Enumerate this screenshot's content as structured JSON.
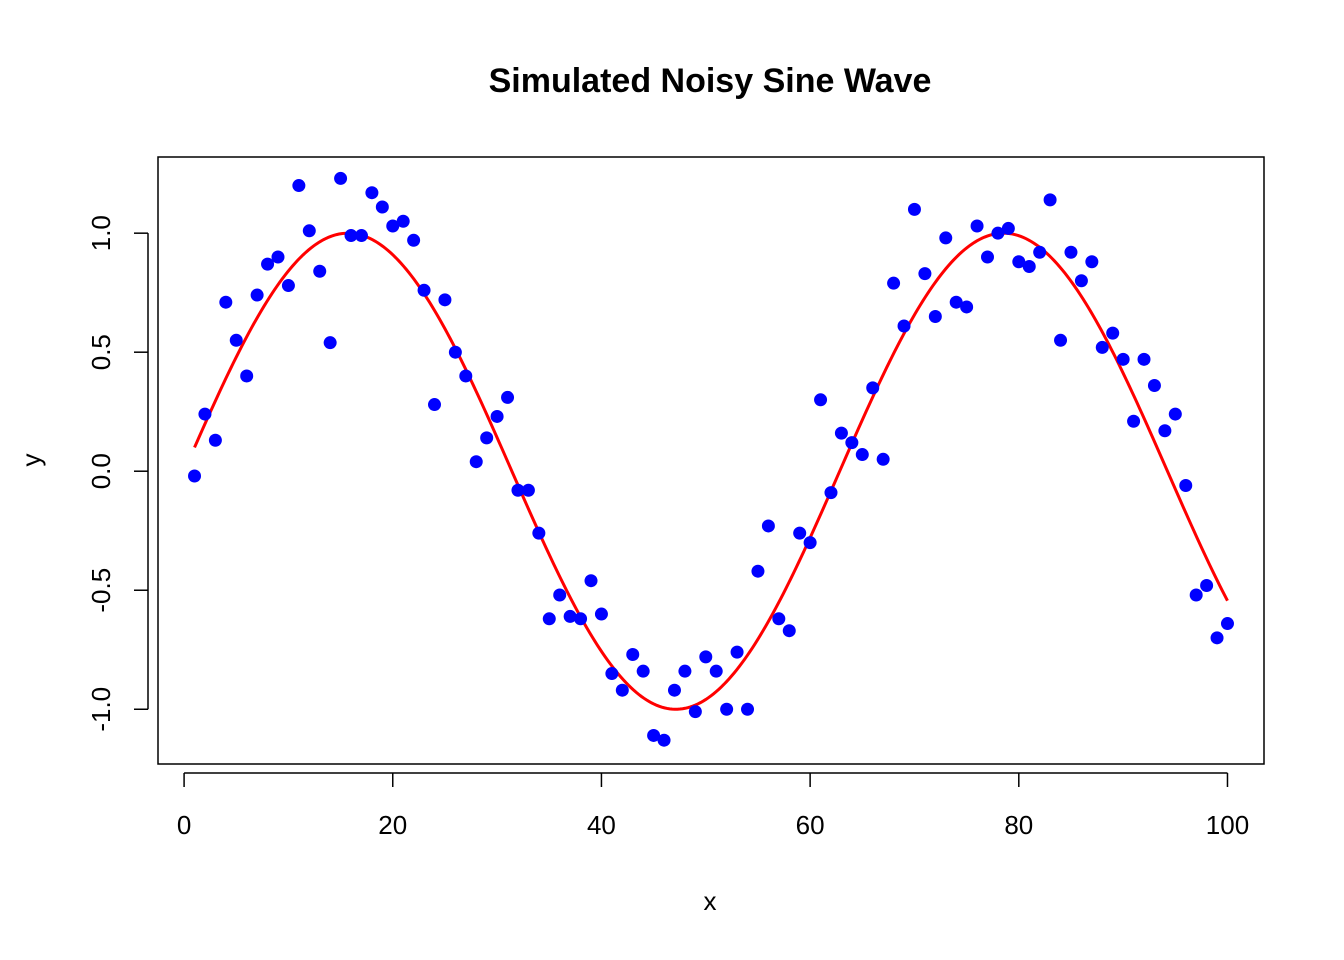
{
  "chart_data": {
    "type": "scatter",
    "title": "Simulated Noisy Sine Wave",
    "xlabel": "x",
    "ylabel": "y",
    "xlim": [
      -2.5,
      103.5
    ],
    "ylim": [
      -1.23,
      1.32
    ],
    "xticks": [
      0,
      20,
      40,
      60,
      80,
      100
    ],
    "xtick_labels": [
      "0",
      "20",
      "40",
      "60",
      "80",
      "100"
    ],
    "yticks": [
      -1.0,
      -0.5,
      0.0,
      0.5,
      1.0
    ],
    "ytick_labels": [
      "-1.0",
      "-0.5",
      "0.0",
      "0.5",
      "1.0"
    ],
    "grid": false,
    "legend": "none",
    "colors": {
      "points": "#0000ff",
      "line": "#ff0000",
      "axes": "#000000"
    },
    "series": [
      {
        "mark": "points",
        "x": [
          1,
          2,
          3,
          4,
          5,
          6,
          7,
          8,
          9,
          10,
          11,
          12,
          13,
          14,
          15,
          16,
          17,
          18,
          19,
          20,
          21,
          22,
          23,
          24,
          25,
          26,
          27,
          28,
          29,
          30,
          31,
          32,
          33,
          34,
          35,
          36,
          37,
          38,
          39,
          40,
          41,
          42,
          43,
          44,
          45,
          46,
          47,
          48,
          49,
          50,
          51,
          52,
          53,
          54,
          55,
          56,
          57,
          58,
          59,
          60,
          61,
          62,
          63,
          64,
          65,
          66,
          67,
          68,
          69,
          70,
          71,
          72,
          73,
          74,
          75,
          76,
          77,
          78,
          79,
          80,
          81,
          82,
          83,
          84,
          85,
          86,
          87,
          88,
          89,
          90,
          91,
          92,
          93,
          94,
          95,
          96,
          97,
          98,
          99,
          100
        ],
        "y": [
          -0.02,
          0.24,
          0.13,
          0.71,
          0.55,
          0.4,
          0.74,
          0.87,
          0.9,
          0.78,
          1.2,
          1.01,
          0.84,
          0.54,
          1.23,
          0.99,
          0.99,
          1.17,
          1.11,
          1.03,
          1.05,
          0.97,
          0.76,
          0.28,
          0.72,
          0.5,
          0.4,
          0.04,
          0.14,
          0.23,
          0.31,
          -0.08,
          -0.08,
          -0.26,
          -0.62,
          -0.52,
          -0.61,
          -0.62,
          -0.46,
          -0.6,
          -0.85,
          -0.92,
          -0.77,
          -0.84,
          -1.11,
          -1.13,
          -0.92,
          -0.84,
          -1.01,
          -0.78,
          -0.84,
          -1.0,
          -0.76,
          -1.0,
          -0.42,
          -0.23,
          -0.62,
          -0.67,
          -0.26,
          -0.3,
          0.3,
          -0.09,
          0.16,
          0.12,
          0.07,
          0.35,
          0.05,
          0.79,
          0.61,
          1.1,
          0.83,
          0.65,
          0.98,
          0.71,
          0.69,
          1.03,
          0.9,
          1.0,
          1.02,
          0.88,
          0.86,
          0.92,
          1.14,
          0.55,
          0.92,
          0.8,
          0.88,
          0.52,
          0.58,
          0.47,
          0.21,
          0.47,
          0.36,
          0.17,
          0.24,
          -0.06,
          -0.52,
          -0.48,
          -0.7,
          -0.64
        ]
      },
      {
        "mark": "line",
        "function": "y = sin(0.1 * x)",
        "x_range": [
          1,
          100
        ]
      }
    ]
  }
}
